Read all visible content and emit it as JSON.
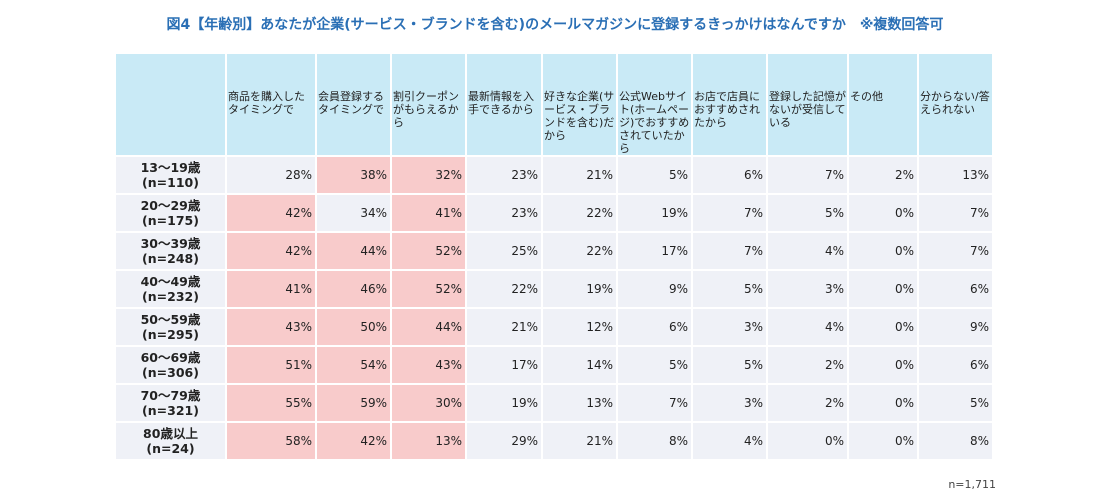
{
  "title": "図4【年齢別】あなたが企業(サービス・ブランドを含む)のメールマガジンに登録するきっかけはなんですか　※複数回答可",
  "note": "n=1,711",
  "colors": {
    "header_bg": "#c9eaf6",
    "cell_bg": "#eff1f7",
    "highlight_bg": "#f8cbcb",
    "title": "#2a6fb5"
  },
  "chart_data": {
    "type": "table",
    "columns": [
      "商品を購入したタイミングで",
      "会員登録するタイミングで",
      "割引クーポンがもらえるから",
      "最新情報を入手できるから",
      "好きな企業(サービス・ブランドを含む)だから",
      "公式Webサイト(ホームページ)でおすすめされていたから",
      "お店で店員におすすめされたから",
      "登録した記憶がないが受信している",
      "その他",
      "分からない/答えられない"
    ],
    "rows": [
      {
        "label": "13〜19歳",
        "n": "(n=110)",
        "values": [
          "28%",
          "38%",
          "32%",
          "23%",
          "21%",
          "5%",
          "6%",
          "7%",
          "2%",
          "13%"
        ],
        "highlight": [
          1,
          2
        ]
      },
      {
        "label": "20〜29歳",
        "n": "(n=175)",
        "values": [
          "42%",
          "34%",
          "41%",
          "23%",
          "22%",
          "19%",
          "7%",
          "5%",
          "0%",
          "7%"
        ],
        "highlight": [
          0,
          2
        ]
      },
      {
        "label": "30〜39歳",
        "n": "(n=248)",
        "values": [
          "42%",
          "44%",
          "52%",
          "25%",
          "22%",
          "17%",
          "7%",
          "4%",
          "0%",
          "7%"
        ],
        "highlight": [
          0,
          1,
          2
        ]
      },
      {
        "label": "40〜49歳",
        "n": "(n=232)",
        "values": [
          "41%",
          "46%",
          "52%",
          "22%",
          "19%",
          "9%",
          "5%",
          "3%",
          "0%",
          "6%"
        ],
        "highlight": [
          0,
          1,
          2
        ]
      },
      {
        "label": "50〜59歳",
        "n": "(n=295)",
        "values": [
          "43%",
          "50%",
          "44%",
          "21%",
          "12%",
          "6%",
          "3%",
          "4%",
          "0%",
          "9%"
        ],
        "highlight": [
          0,
          1,
          2
        ]
      },
      {
        "label": "60〜69歳",
        "n": "(n=306)",
        "values": [
          "51%",
          "54%",
          "43%",
          "17%",
          "14%",
          "5%",
          "5%",
          "2%",
          "0%",
          "6%"
        ],
        "highlight": [
          0,
          1,
          2
        ]
      },
      {
        "label": "70〜79歳",
        "n": "(n=321)",
        "values": [
          "55%",
          "59%",
          "30%",
          "19%",
          "13%",
          "7%",
          "3%",
          "2%",
          "0%",
          "5%"
        ],
        "highlight": [
          0,
          1,
          2
        ]
      },
      {
        "label": "80歳以上",
        "n": "(n=24)",
        "values": [
          "58%",
          "42%",
          "13%",
          "29%",
          "21%",
          "8%",
          "4%",
          "0%",
          "0%",
          "8%"
        ],
        "highlight": [
          0,
          1,
          2
        ]
      }
    ]
  }
}
